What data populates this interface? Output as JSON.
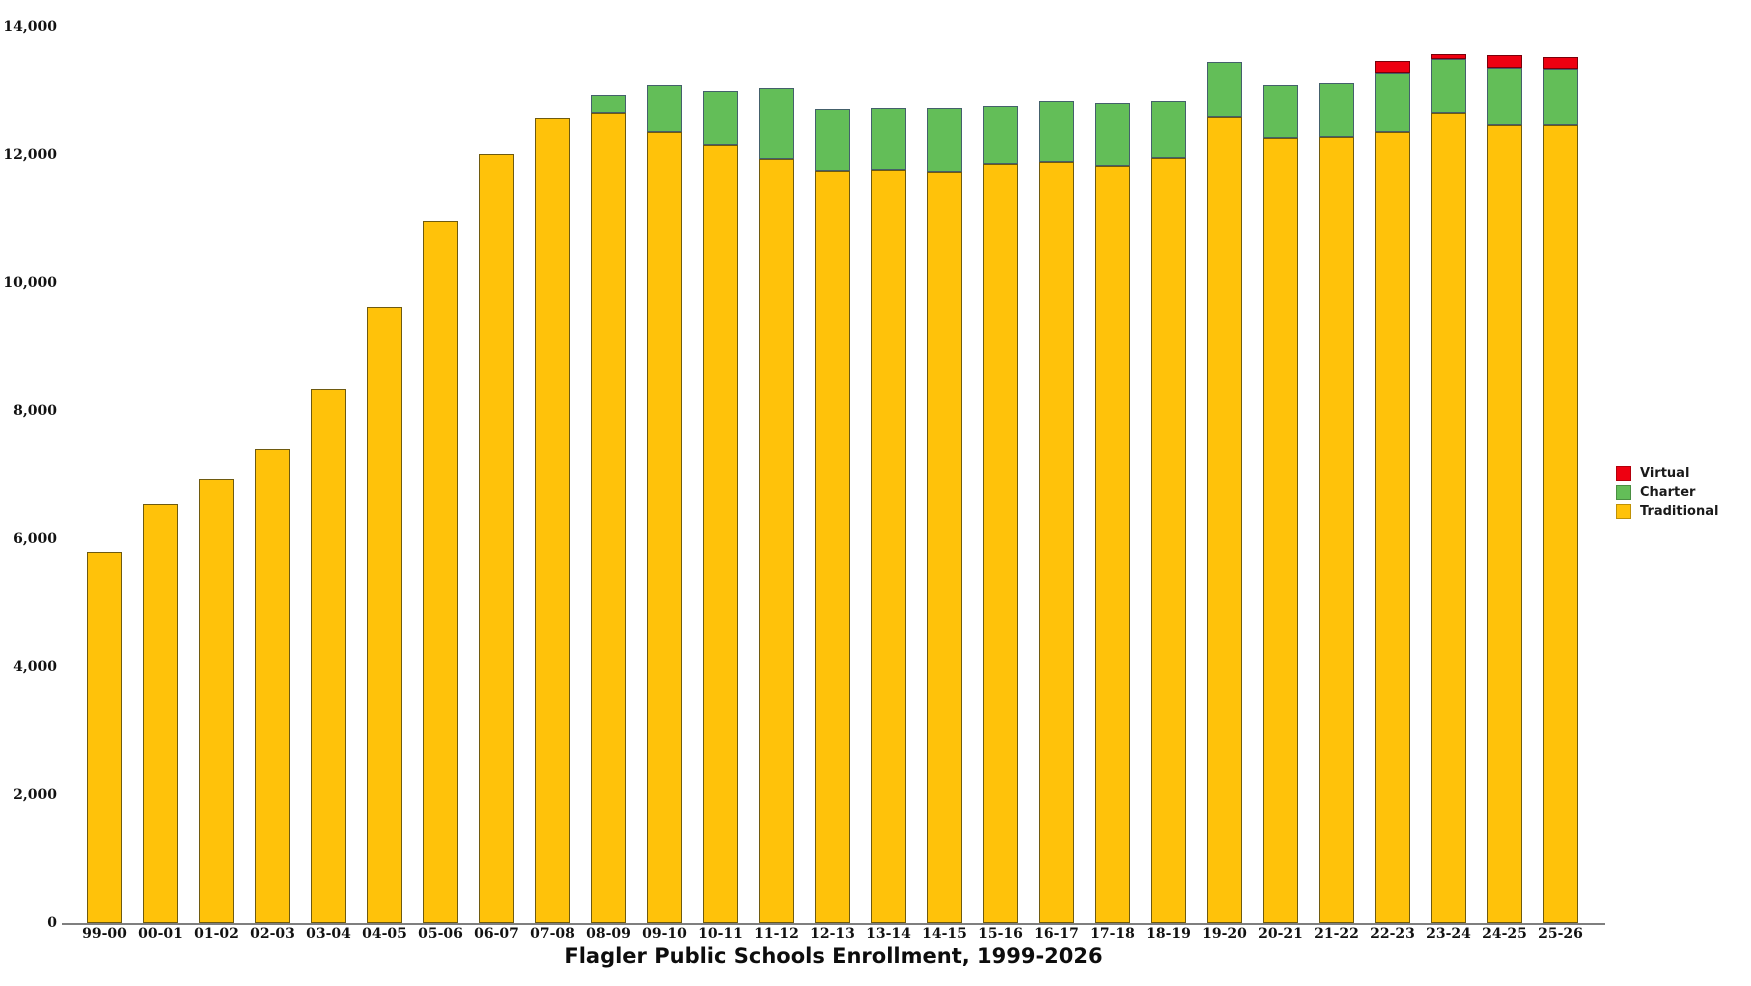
{
  "chart_data": {
    "type": "bar",
    "stacked": true,
    "title": "Flagler Public Schools Enrollment, 1999-2026",
    "categories": [
      "99-00",
      "00-01",
      "01-02",
      "02-03",
      "03-04",
      "04-05",
      "05-06",
      "06-07",
      "07-08",
      "08-09",
      "09-10",
      "10-11",
      "11-12",
      "12-13",
      "13-14",
      "14-15",
      "15-16",
      "16-17",
      "17-18",
      "18-19",
      "19-20",
      "20-21",
      "21-22",
      "22-23",
      "23-24",
      "24-25",
      "25-26"
    ],
    "series": [
      {
        "name": "Traditional",
        "color": "#FFC20A",
        "stroke": "#6e5a10",
        "values": [
          5800,
          6550,
          6940,
          7400,
          8350,
          9630,
          10970,
          12020,
          12580,
          12660,
          12360,
          12160,
          11940,
          11750,
          11770,
          11730,
          11860,
          11890,
          11830,
          11950,
          12590,
          12270,
          12280,
          12360,
          12660,
          12470,
          12470
        ]
      },
      {
        "name": "Charter",
        "color": "#63BE58",
        "stroke": "#44606b",
        "values": [
          0,
          0,
          0,
          0,
          0,
          0,
          0,
          0,
          0,
          280,
          730,
          840,
          1110,
          970,
          960,
          1000,
          910,
          950,
          980,
          890,
          870,
          820,
          840,
          920,
          840,
          890,
          870
        ]
      },
      {
        "name": "Virtual",
        "color": "#EE0011",
        "stroke": "#7a000a",
        "values": [
          0,
          0,
          0,
          0,
          0,
          0,
          0,
          0,
          0,
          0,
          0,
          0,
          0,
          0,
          0,
          0,
          0,
          0,
          0,
          0,
          0,
          0,
          0,
          190,
          80,
          200,
          190
        ]
      }
    ],
    "ylim": [
      0,
      14000
    ],
    "ytick_step": 2000,
    "ytick_labels": [
      "0",
      "2,000",
      "4,000",
      "6,000",
      "8,000",
      "10,000",
      "12,000",
      "14,000"
    ],
    "grid": false,
    "legend_position": "right",
    "legend": {
      "items": [
        {
          "label": "Virtual",
          "color": "#EE0011"
        },
        {
          "label": "Charter",
          "color": "#63BE58"
        },
        {
          "label": "Traditional",
          "color": "#FFC20A"
        }
      ]
    }
  },
  "layout_text": {}
}
